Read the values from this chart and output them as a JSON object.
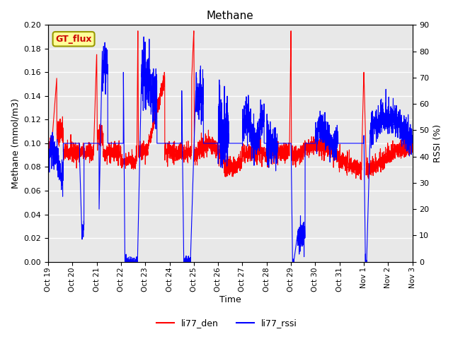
{
  "title": "Methane",
  "ylabel_left": "Methane (mmol/m3)",
  "ylabel_right": "RSSI (%)",
  "xlabel": "Time",
  "ylim_left": [
    0.0,
    0.2
  ],
  "ylim_right": [
    0,
    90
  ],
  "yticks_left": [
    0.0,
    0.02,
    0.04,
    0.06,
    0.08,
    0.1,
    0.12,
    0.14,
    0.16,
    0.18,
    0.2
  ],
  "yticks_right": [
    0,
    10,
    20,
    30,
    40,
    50,
    60,
    70,
    80,
    90
  ],
  "xtick_labels": [
    "Oct 19",
    "Oct 20",
    "Oct 21",
    "Oct 22",
    "Oct 23",
    "Oct 24",
    "Oct 25",
    "Oct 26",
    "Oct 27",
    "Oct 28",
    "Oct 29",
    "Oct 30",
    "Oct 31",
    "Nov 1",
    "Nov 2",
    "Nov 3"
  ],
  "color_red": "#FF0000",
  "color_blue": "#0000FF",
  "bg_color": "#E8E8E8",
  "legend_label_red": "li77_den",
  "legend_label_blue": "li77_rssi",
  "gt_flux_bg": "#FFFF99",
  "gt_flux_border": "#999900",
  "gt_flux_text_color": "#CC0000",
  "linewidth": 0.8,
  "num_points": 3360
}
